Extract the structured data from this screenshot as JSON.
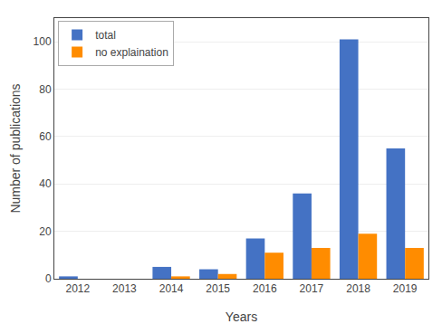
{
  "chart_data": {
    "type": "bar",
    "xlabel": "Years",
    "ylabel": "Number of publications",
    "categories": [
      "2012",
      "2013",
      "2014",
      "2015",
      "2016",
      "2017",
      "2018",
      "2019"
    ],
    "series": [
      {
        "name": "total",
        "color": "#4472C4",
        "values": [
          1,
          0,
          5,
          4,
          17,
          36,
          101,
          55
        ]
      },
      {
        "name": "no explaination",
        "color": "#FF8C00",
        "values": [
          0,
          0,
          1,
          2,
          11,
          13,
          19,
          13
        ]
      }
    ],
    "ylim": [
      0,
      110
    ],
    "yticks": [
      0,
      20,
      40,
      60,
      80,
      100
    ],
    "grid": true,
    "legend": "upper left"
  }
}
